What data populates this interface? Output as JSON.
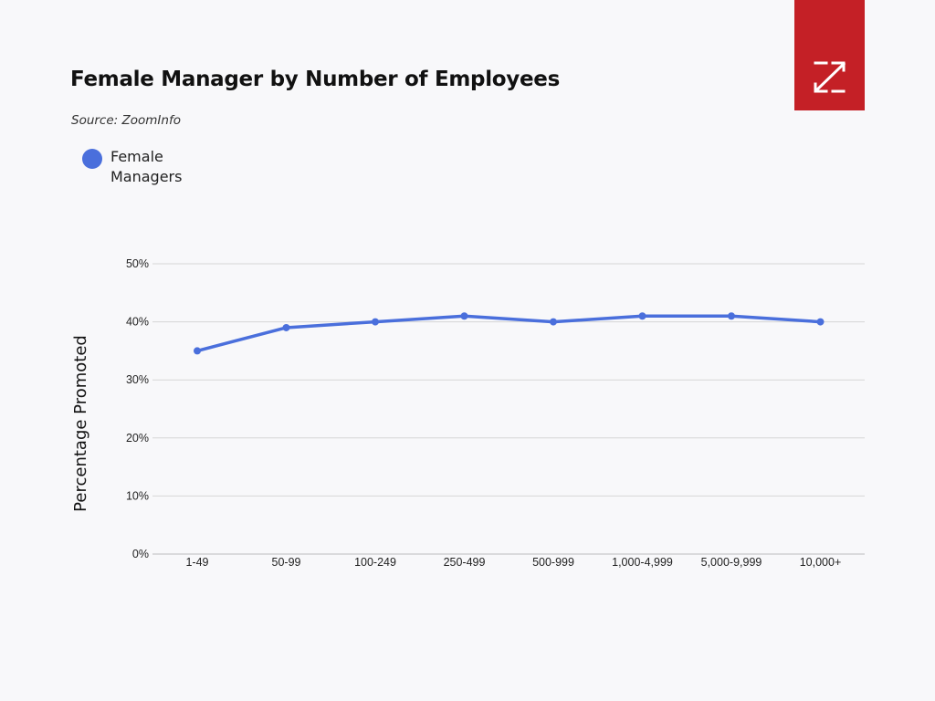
{
  "header": {
    "title": "Female Manager by Number of Employees",
    "source": "Source: ZoomInfo"
  },
  "logo": {
    "icon": "zoominfo-z-logo",
    "color": "#c42026"
  },
  "legend": {
    "placement": "top-left",
    "items": [
      {
        "label": "Female Managers",
        "color": "#4a6fdc"
      }
    ]
  },
  "chart_data": {
    "type": "line",
    "categories": [
      "1-49",
      "50-99",
      "100-249",
      "250-499",
      "500-999",
      "1,000-4,999",
      "5,000-9,999",
      "10,000+"
    ],
    "series": [
      {
        "name": "Female Managers",
        "color": "#4a6fdc",
        "values": [
          35,
          39,
          40,
          41,
          40,
          41,
          41,
          40
        ]
      }
    ],
    "ylabel": "Percentage Promoted",
    "xlabel": "",
    "ylim": [
      0,
      50
    ],
    "yticks": [
      0,
      10,
      20,
      30,
      40,
      50
    ],
    "ytick_labels": [
      "0%",
      "10%",
      "20%",
      "30%",
      "40%",
      "50%"
    ],
    "grid": true
  }
}
